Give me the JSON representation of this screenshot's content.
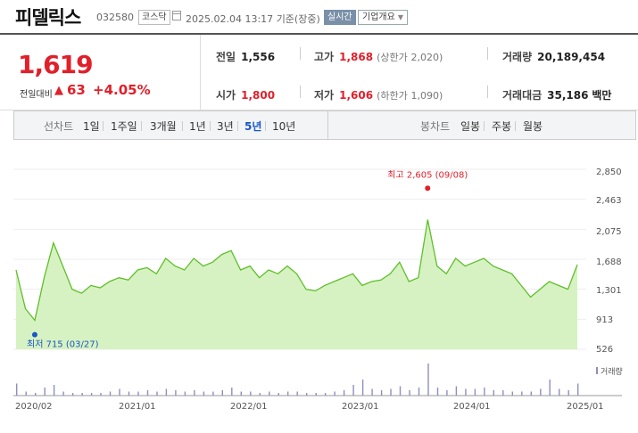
{
  "header": {
    "name": "피델릭스",
    "code": "032580",
    "market": "코스닥",
    "datetime": "2025.02.04 13:17",
    "basis": "기준(장중)",
    "realtime_btn": "실시간",
    "corp_info_btn": "기업개요"
  },
  "quote": {
    "price": "1,619",
    "change_label": "전일대비",
    "change_arrow": "▲",
    "change": "63",
    "change_rate": "+4.05%",
    "prev_close_label": "전일",
    "prev_close": "1,556",
    "high_label": "고가",
    "high": "1,868",
    "upper_limit_label": "(상한가",
    "upper_limit": "2,020)",
    "volume_label": "거래량",
    "volume": "20,189,454",
    "open_label": "시가",
    "open": "1,800",
    "low_label": "저가",
    "low": "1,606",
    "lower_limit_label": "(하한가",
    "lower_limit": "1,090)",
    "amount_label": "거래대금",
    "amount": "35,186",
    "amount_unit": "백만"
  },
  "tabs": {
    "line_label": "선차트",
    "line_items": [
      "1일",
      "1주일",
      "3개월",
      "1년",
      "3년",
      "5년",
      "10년"
    ],
    "line_selected": "5년",
    "candle_label": "봉차트",
    "candle_items": [
      "일봉",
      "주봉",
      "월봉"
    ]
  },
  "chart_data": {
    "type": "area",
    "y_ticks": [
      "2,850",
      "2,463",
      "2,075",
      "1,688",
      "1,301",
      "913",
      "526"
    ],
    "ylim": [
      526,
      2850
    ],
    "x_ticks": [
      "2020/02",
      "2021/01",
      "2022/01",
      "2023/01",
      "2024/01",
      "2025/01"
    ],
    "high_annotation": "최고 2,605 (09/08)",
    "low_annotation": "최저 715 (03/27)",
    "volume_legend": "거래량",
    "line_color": "#5fbf2a",
    "fill_color": "#d6f2c2",
    "series": [
      {
        "x": [
          "2020/02",
          "2020/03",
          "2020/04",
          "2020/05",
          "2020/06",
          "2020/07",
          "2020/08",
          "2020/09",
          "2020/10",
          "2020/11",
          "2020/12",
          "2021/01",
          "2021/02",
          "2021/03",
          "2021/04",
          "2021/05",
          "2021/06",
          "2021/07",
          "2021/08",
          "2021/09",
          "2021/10",
          "2021/11",
          "2021/12",
          "2022/01",
          "2022/02",
          "2022/03",
          "2022/04",
          "2022/05",
          "2022/06",
          "2022/07",
          "2022/08",
          "2022/09",
          "2022/10",
          "2022/11",
          "2022/12",
          "2023/01",
          "2023/02",
          "2023/03",
          "2023/04",
          "2023/05",
          "2023/06",
          "2023/07",
          "2023/08",
          "2023/09",
          "2023/10",
          "2023/11",
          "2023/12",
          "2024/01",
          "2024/02",
          "2024/03",
          "2024/04",
          "2024/05",
          "2024/06",
          "2024/07",
          "2024/08",
          "2024/09",
          "2024/10",
          "2024/11",
          "2024/12",
          "2025/01",
          "2025/02"
        ],
        "values": [
          1550,
          1050,
          900,
          1450,
          1900,
          1600,
          1300,
          1250,
          1350,
          1320,
          1400,
          1450,
          1420,
          1550,
          1580,
          1500,
          1700,
          1600,
          1550,
          1700,
          1600,
          1650,
          1750,
          1800,
          1550,
          1600,
          1450,
          1550,
          1500,
          1600,
          1500,
          1300,
          1280,
          1350,
          1400,
          1450,
          1500,
          1350,
          1400,
          1420,
          1500,
          1650,
          1400,
          1450,
          2200,
          1600,
          1500,
          1700,
          1600,
          1650,
          1700,
          1600,
          1550,
          1500,
          1350,
          1200,
          1300,
          1400,
          1350,
          1300,
          1619
        ]
      }
    ],
    "volume_values": [
      9,
      3,
      2,
      6,
      8,
      3,
      2,
      2,
      2,
      2,
      3,
      5,
      3,
      3,
      4,
      3,
      5,
      4,
      3,
      4,
      3,
      3,
      4,
      6,
      3,
      3,
      2,
      3,
      2,
      3,
      3,
      2,
      2,
      2,
      3,
      4,
      8,
      12,
      5,
      4,
      5,
      7,
      4,
      6,
      24,
      6,
      4,
      7,
      5,
      5,
      6,
      4,
      4,
      3,
      3,
      3,
      5,
      12,
      5,
      4,
      9
    ]
  }
}
